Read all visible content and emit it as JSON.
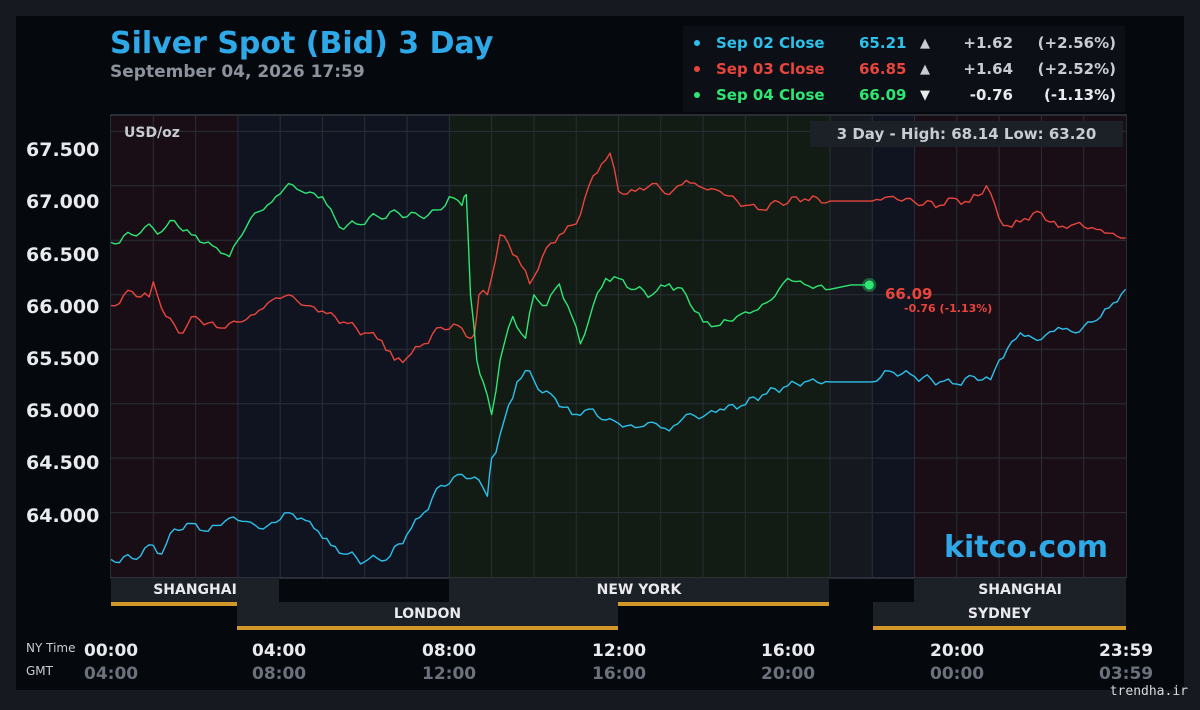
{
  "header": {
    "title": "Silver Spot (Bid) 3 Day",
    "subtitle": "September 04, 2026 17:59"
  },
  "legend": [
    {
      "name": "Sep 02 Close",
      "value": "65.21",
      "arrow": "▲",
      "change": "+1.62",
      "pct": "(+2.56%)",
      "color": "#2cc0ea"
    },
    {
      "name": "Sep 03 Close",
      "value": "66.85",
      "arrow": "▲",
      "change": "+1.64",
      "pct": "(+2.52%)",
      "color": "#e8453c"
    },
    {
      "name": "Sep 04 Close",
      "value": "66.09",
      "arrow": "▼",
      "change": "-0.76",
      "pct": "(-1.13%)",
      "color": "#2ee672"
    }
  ],
  "y_ticks": [
    "67.500",
    "67.000",
    "66.500",
    "66.000",
    "65.500",
    "65.000",
    "64.500",
    "64.000"
  ],
  "unit_label": "USD/oz",
  "hilo_label": "3 Day - High: 68.14  Low: 63.20",
  "current": {
    "value": "66.09",
    "change": "-0.76 (-1.13%)"
  },
  "brand": "kitco.com",
  "sessions": {
    "row1": [
      "SHANGHAI",
      "NEW YORK",
      "SHANGHAI"
    ],
    "row2": [
      "LONDON",
      "SYDNEY"
    ]
  },
  "time_axis": {
    "ny_label": "NY Time",
    "gmt_label": "GMT",
    "ny": [
      "00:00",
      "04:00",
      "08:00",
      "12:00",
      "16:00",
      "20:00",
      "23:59"
    ],
    "gmt": [
      "04:00",
      "08:00",
      "12:00",
      "16:00",
      "20:00",
      "00:00",
      "03:59"
    ]
  },
  "watermark": "trendha.ir",
  "chart_data": {
    "type": "line",
    "title": "Silver Spot (Bid) 3 Day",
    "ylabel": "USD/oz",
    "ylim": [
      63.4,
      67.65
    ],
    "xlim": [
      0,
      24
    ],
    "high": 68.14,
    "low": 63.2,
    "grid": true,
    "series": [
      {
        "name": "Sep 02 Close",
        "color": "#2cc0ea",
        "x": [
          0,
          0.5,
          1,
          1.2,
          1.5,
          1.9,
          2.3,
          2.8,
          3.2,
          3.6,
          4.2,
          4.5,
          4.9,
          5.2,
          5.6,
          6.0,
          6.3,
          6.6,
          7.0,
          7.4,
          7.8,
          8.3,
          8.7,
          8.9,
          9.0,
          9.1,
          9.3,
          9.6,
          9.9,
          10.2,
          10.5,
          10.9,
          11.3,
          11.7,
          12.0,
          12.4,
          12.8,
          13.2,
          13.6,
          14.0,
          14.4,
          14.9,
          15.4,
          15.9,
          16.4,
          17.0,
          17.5,
          18.0,
          18.4,
          19.0,
          19.6,
          20.0,
          20.4,
          20.8,
          21.0,
          21.5,
          21.9,
          22.4,
          22.8,
          23.2,
          23.6,
          23.99
        ],
        "y": [
          63.57,
          63.58,
          63.7,
          63.62,
          63.85,
          63.9,
          63.83,
          63.95,
          63.92,
          63.85,
          64.0,
          63.95,
          63.83,
          63.7,
          63.62,
          63.55,
          63.58,
          63.6,
          63.8,
          64.0,
          64.25,
          64.35,
          64.3,
          64.15,
          64.5,
          64.55,
          64.85,
          65.2,
          65.3,
          65.1,
          65.05,
          64.9,
          64.95,
          64.85,
          64.82,
          64.78,
          64.83,
          64.75,
          64.9,
          64.88,
          64.95,
          64.98,
          65.08,
          65.15,
          65.2,
          65.2,
          65.2,
          65.2,
          65.3,
          65.25,
          65.2,
          65.18,
          65.25,
          65.22,
          65.4,
          65.65,
          65.58,
          65.7,
          65.65,
          65.75,
          65.88,
          66.05
        ]
      },
      {
        "name": "Sep 03 Close",
        "color": "#e8453c",
        "x": [
          0,
          0.5,
          0.9,
          1.0,
          1.3,
          1.6,
          2.0,
          2.5,
          3.0,
          3.4,
          3.8,
          4.2,
          4.6,
          5.0,
          5.5,
          6.0,
          6.4,
          6.7,
          7.0,
          7.4,
          7.8,
          8.2,
          8.5,
          8.6,
          8.7,
          8.9,
          9.2,
          9.6,
          9.9,
          10.2,
          10.6,
          11.0,
          11.3,
          11.6,
          11.8,
          12.0,
          12.4,
          12.8,
          13.2,
          13.6,
          14.0,
          14.4,
          15.0,
          15.4,
          15.8,
          16.4,
          17.0,
          17.5,
          18.0,
          18.4,
          19.0,
          19.6,
          20.0,
          20.3,
          20.7,
          21.0,
          21.3,
          21.6,
          22.0,
          22.4,
          22.8,
          23.3,
          23.99
        ],
        "y": [
          65.9,
          66.03,
          65.98,
          66.12,
          65.8,
          65.65,
          65.8,
          65.7,
          65.75,
          65.82,
          65.95,
          66.0,
          65.9,
          65.85,
          65.75,
          65.65,
          65.58,
          65.4,
          65.42,
          65.55,
          65.7,
          65.72,
          65.6,
          65.65,
          66.0,
          66.0,
          66.55,
          66.35,
          66.1,
          66.35,
          66.55,
          66.65,
          67.0,
          67.2,
          67.3,
          66.95,
          66.95,
          67.02,
          66.92,
          67.05,
          66.98,
          66.95,
          66.82,
          66.78,
          66.85,
          66.88,
          66.86,
          66.86,
          66.86,
          66.9,
          66.85,
          66.82,
          66.88,
          66.85,
          67.0,
          66.7,
          66.62,
          66.7,
          66.75,
          66.62,
          66.65,
          66.6,
          66.52
        ]
      },
      {
        "name": "Sep 04 Close",
        "color": "#2ee672",
        "x": [
          0,
          0.5,
          0.8,
          1.2,
          1.5,
          1.9,
          2.4,
          2.8,
          3.0,
          3.3,
          3.8,
          4.2,
          4.5,
          5.0,
          5.4,
          5.8,
          6.3,
          6.8,
          7.3,
          7.8,
          8.0,
          8.3,
          8.4,
          8.5,
          8.65,
          8.8,
          9.0,
          9.2,
          9.5,
          9.8,
          10.0,
          10.3,
          10.6,
          10.9,
          11.1,
          11.4,
          11.7,
          12.0,
          12.4,
          12.8,
          13.2,
          13.6,
          14.0,
          14.4,
          14.8,
          15.2,
          15.6,
          16.0,
          16.5,
          17.0,
          17.5,
          17.93
        ],
        "y": [
          66.48,
          66.55,
          66.62,
          66.58,
          66.68,
          66.55,
          66.45,
          66.35,
          66.5,
          66.7,
          66.85,
          67.02,
          66.95,
          66.9,
          66.62,
          66.65,
          66.72,
          66.75,
          66.72,
          66.78,
          66.9,
          66.82,
          66.92,
          66.0,
          65.4,
          65.2,
          64.9,
          65.4,
          65.8,
          65.6,
          66.0,
          65.9,
          66.1,
          65.8,
          65.55,
          65.9,
          66.15,
          66.15,
          66.05,
          66.0,
          66.1,
          66.0,
          65.75,
          65.72,
          65.8,
          65.85,
          65.95,
          66.15,
          66.08,
          66.05,
          66.09,
          66.09
        ]
      }
    ]
  }
}
